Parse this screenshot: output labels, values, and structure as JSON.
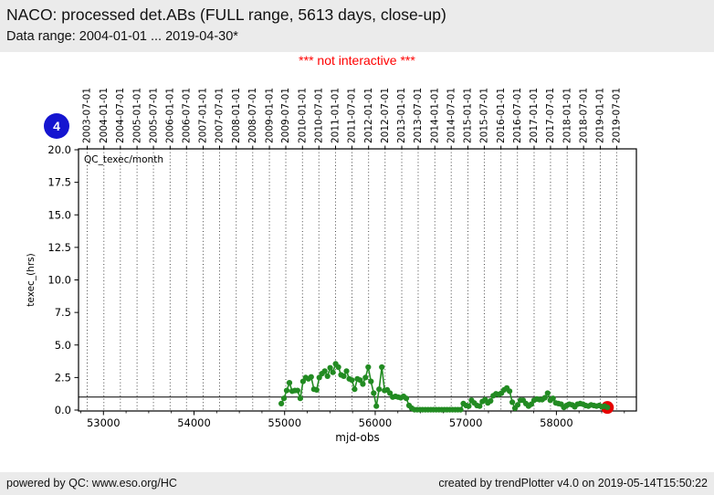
{
  "header": {
    "title": "NACO: processed det.ABs (FULL range, 5613 days, close-up)",
    "subtitle": "Data range: 2004-01-01 ... 2019-04-30*"
  },
  "notice": "*** not interactive ***",
  "badge": {
    "label": "4",
    "color": "#1515d0"
  },
  "footer": {
    "left": "powered by QC: www.eso.org/HC",
    "right": "created by trendPlotter v4.0 on 2019-05-14T15:50:22"
  },
  "chart_data": {
    "type": "line",
    "title_inside": "QC_texec/month",
    "xlabel": "mjd-obs",
    "ylabel": "texec_(hrs)",
    "xlim": [
      52725,
      58883
    ],
    "ylim": [
      0,
      20
    ],
    "yticks": [
      0,
      2.5,
      5,
      7.5,
      10,
      12.5,
      15,
      17.5,
      20
    ],
    "xticks_bottom": [
      53000,
      54000,
      55000,
      56000,
      57000,
      58000
    ],
    "minor_tick_step": 250,
    "grid": "vertical-dotted",
    "threshold": 1.0,
    "date_ticks_top": [
      "2003-07-01",
      "2004-01-01",
      "2004-07-01",
      "2005-01-01",
      "2005-07-01",
      "2006-01-01",
      "2006-07-01",
      "2007-01-01",
      "2007-07-01",
      "2008-01-01",
      "2008-07-01",
      "2009-01-01",
      "2009-07-01",
      "2010-01-01",
      "2010-07-01",
      "2011-01-01",
      "2011-07-01",
      "2012-01-01",
      "2012-07-01",
      "2013-01-01",
      "2013-07-01",
      "2014-01-01",
      "2014-07-01",
      "2015-01-01",
      "2015-07-01",
      "2016-01-01",
      "2016-07-01",
      "2017-01-01",
      "2017-07-01",
      "2018-01-01",
      "2018-07-01",
      "2019-01-01",
      "2019-07-01"
    ],
    "series": [
      {
        "name": "QC_texec/month",
        "color": "#228b22",
        "x": [
          54963,
          54993,
          55023,
          55053,
          55083,
          55113,
          55143,
          55173,
          55203,
          55233,
          55263,
          55293,
          55323,
          55353,
          55383,
          55413,
          55443,
          55473,
          55503,
          55533,
          55563,
          55593,
          55623,
          55653,
          55683,
          55713,
          55743,
          55773,
          55803,
          55833,
          55863,
          55893,
          55923,
          55953,
          55983,
          56013,
          56043,
          56073,
          56103,
          56133,
          56163,
          56193,
          56223,
          56253,
          56283,
          56313,
          56343,
          56373,
          56403,
          56433,
          56463,
          56493,
          56523,
          56553,
          56583,
          56613,
          56643,
          56673,
          56703,
          56733,
          56763,
          56793,
          56823,
          56853,
          56883,
          56913,
          56943,
          56973,
          57003,
          57033,
          57063,
          57093,
          57123,
          57153,
          57183,
          57213,
          57243,
          57273,
          57303,
          57333,
          57363,
          57393,
          57423,
          57453,
          57483,
          57513,
          57543,
          57573,
          57603,
          57633,
          57663,
          57693,
          57723,
          57753,
          57783,
          57813,
          57843,
          57873,
          57903,
          57933,
          57963,
          57993,
          58023,
          58053,
          58083,
          58113,
          58143,
          58173,
          58203,
          58233,
          58263,
          58293,
          58323,
          58353,
          58383,
          58413,
          58443,
          58473,
          58503,
          58533,
          58563
        ],
        "y": [
          0.5,
          0.9,
          1.5,
          2.1,
          1.45,
          1.5,
          1.5,
          0.9,
          2.2,
          2.5,
          2.4,
          2.55,
          1.6,
          1.55,
          2.5,
          2.8,
          3.0,
          2.6,
          3.25,
          2.9,
          3.55,
          3.3,
          2.7,
          2.6,
          3.0,
          2.4,
          2.3,
          1.6,
          2.4,
          2.3,
          2.0,
          2.5,
          3.3,
          2.2,
          1.3,
          0.3,
          1.6,
          3.3,
          1.5,
          1.55,
          1.3,
          1.0,
          1.05,
          1.0,
          0.95,
          1.05,
          0.9,
          0.35,
          0.15,
          0.03,
          0.03,
          0.03,
          0.03,
          0.03,
          0.03,
          0.03,
          0.03,
          0.03,
          0.03,
          0.03,
          0.03,
          0.03,
          0.03,
          0.03,
          0.03,
          0.03,
          0.03,
          0.5,
          0.35,
          0.3,
          0.75,
          0.55,
          0.35,
          0.3,
          0.65,
          0.8,
          0.55,
          0.7,
          1.1,
          1.25,
          1.2,
          1.3,
          1.55,
          1.7,
          1.45,
          0.6,
          0.15,
          0.4,
          0.75,
          0.75,
          0.5,
          0.3,
          0.45,
          0.75,
          0.85,
          0.8,
          0.8,
          0.95,
          1.3,
          0.75,
          0.9,
          0.55,
          0.5,
          0.45,
          0.2,
          0.35,
          0.45,
          0.4,
          0.25,
          0.45,
          0.5,
          0.45,
          0.35,
          0.3,
          0.4,
          0.35,
          0.3,
          0.35,
          0.25,
          0.3,
          0.2
        ]
      }
    ],
    "highlight_last": {
      "mjd": 58563,
      "value": 0.2,
      "color": "#e60000"
    }
  }
}
